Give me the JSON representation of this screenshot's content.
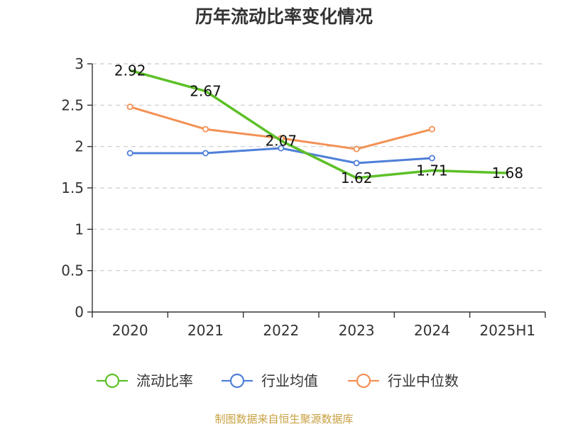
{
  "colors": {
    "current_ratio": "#5dc028",
    "industry_mean": "#4f7fd8",
    "industry_median": "#f39155",
    "source_text": "#c8a040"
  },
  "chart_data": {
    "type": "line",
    "title": "历年流动比率变化情况",
    "xlabel": "",
    "ylabel": "",
    "categories": [
      "2020",
      "2021",
      "2022",
      "2023",
      "2024",
      "2025H1"
    ],
    "ylim": [
      0,
      3
    ],
    "yticks": [
      "0",
      "0.5",
      "1",
      "1.5",
      "2",
      "2.5",
      "3"
    ],
    "grid": true,
    "legend_position": "bottom",
    "series": [
      {
        "name": "流动比率",
        "key": "current_ratio",
        "values": [
          2.92,
          2.67,
          2.07,
          1.62,
          1.71,
          1.68
        ],
        "data_labels": [
          "2.92",
          "2.67",
          "2.07",
          "1.62",
          "1.71",
          "1.68"
        ],
        "markers": false
      },
      {
        "name": "行业均值",
        "key": "industry_mean",
        "values": [
          1.92,
          1.92,
          1.98,
          1.8,
          1.86,
          null
        ],
        "markers": true
      },
      {
        "name": "行业中位数",
        "key": "industry_median",
        "values": [
          2.48,
          2.21,
          2.1,
          1.97,
          2.21,
          null
        ],
        "markers": true
      }
    ]
  },
  "source": "制图数据来自恒生聚源数据库"
}
